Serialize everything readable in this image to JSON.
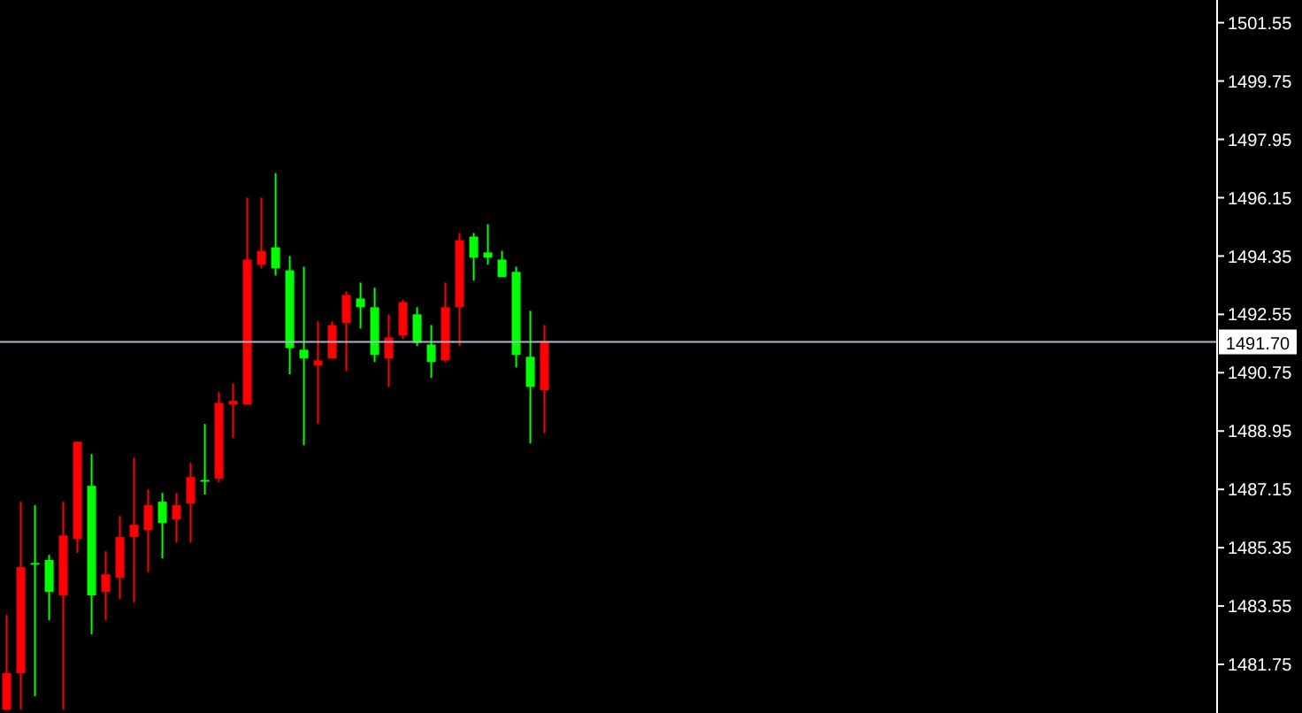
{
  "chart_data": {
    "type": "candlestick",
    "categories": [
      null,
      null,
      null,
      null,
      null,
      null,
      null,
      null,
      null,
      null,
      null,
      null,
      null,
      null,
      null,
      null,
      null,
      null,
      null,
      null,
      null,
      null,
      null,
      null,
      null,
      null,
      null,
      null,
      null,
      null,
      null,
      null,
      null,
      null,
      null,
      null,
      null,
      null,
      null,
      null,
      null,
      null,
      null,
      null,
      null,
      null,
      null,
      null,
      null,
      null,
      null,
      null,
      null,
      null,
      null,
      null,
      null,
      null,
      null,
      null,
      null,
      null,
      null,
      null,
      null,
      null,
      null,
      null,
      null,
      null,
      null,
      null,
      null,
      null,
      null,
      null,
      null,
      null,
      null,
      null,
      null,
      null,
      null,
      null,
      null,
      null
    ],
    "ohlc": [
      [
        1481.48,
        1483.28,
        1480.35,
        1480.35
      ],
      [
        1484.75,
        1486.77,
        1480.35,
        1481.48
      ],
      [
        1484.84,
        1486.66,
        1480.77,
        1484.88
      ],
      [
        1483.99,
        1485.13,
        1483.11,
        1484.97
      ],
      [
        1485.73,
        1486.77,
        1480.35,
        1483.88
      ],
      [
        1488.62,
        1488.62,
        1485.19,
        1485.62
      ],
      [
        1483.88,
        1488.24,
        1482.68,
        1487.26
      ],
      [
        1484.53,
        1485.24,
        1483.11,
        1483.99
      ],
      [
        1485.68,
        1486.33,
        1483.77,
        1484.42
      ],
      [
        1486.06,
        1488.13,
        1483.66,
        1485.68
      ],
      [
        1486.66,
        1487.15,
        1484.59,
        1485.89
      ],
      [
        1486.11,
        1487.04,
        1485.02,
        1486.77
      ],
      [
        1486.66,
        1487.04,
        1485.51,
        1486.22
      ],
      [
        1487.53,
        1487.97,
        1485.51,
        1486.71
      ],
      [
        1487.4,
        1489.17,
        1486.99,
        1487.44
      ],
      [
        1489.82,
        1490.15,
        1487.37,
        1487.48
      ],
      [
        1489.88,
        1490.42,
        1488.73,
        1489.77
      ],
      [
        1494.24,
        1496.15,
        1489.77,
        1489.77
      ],
      [
        1494.51,
        1496.15,
        1493.97,
        1494.08
      ],
      [
        1493.97,
        1496.91,
        1493.75,
        1494.62
      ],
      [
        1491.51,
        1494.35,
        1490.7,
        1493.91
      ],
      [
        1491.19,
        1494.02,
        1488.51,
        1491.46
      ],
      [
        1491.13,
        1492.33,
        1489.17,
        1490.97
      ],
      [
        1492.22,
        1492.33,
        1491.19,
        1491.19
      ],
      [
        1493.15,
        1493.26,
        1490.8,
        1492.28
      ],
      [
        1492.77,
        1493.53,
        1492.11,
        1493.04
      ],
      [
        1491.3,
        1493.37,
        1491.08,
        1492.77
      ],
      [
        1491.84,
        1492.55,
        1490.31,
        1491.19
      ],
      [
        1492.93,
        1492.99,
        1491.79,
        1491.9
      ],
      [
        1491.67,
        1492.77,
        1491.57,
        1492.55
      ],
      [
        1491.08,
        1492.22,
        1490.59,
        1491.62
      ],
      [
        1492.77,
        1493.53,
        1491.08,
        1491.13
      ],
      [
        1494.84,
        1495.06,
        1491.57,
        1492.77
      ],
      [
        1494.3,
        1495.06,
        1493.59,
        1494.95
      ],
      [
        1494.3,
        1495.33,
        1494.08,
        1494.46
      ],
      [
        1493.7,
        1494.51,
        1493.7,
        1494.24
      ],
      [
        1491.3,
        1494.02,
        1490.91,
        1493.86
      ],
      [
        1490.31,
        1492.66,
        1488.57,
        1491.24
      ],
      [
        1491.73,
        1492.22,
        1488.89,
        1490.21
      ],
      null,
      null,
      null,
      null,
      null,
      null,
      null,
      null,
      null,
      null,
      null,
      null,
      null,
      null,
      null,
      null,
      null,
      null,
      null,
      null,
      null,
      null,
      null,
      null,
      null,
      null,
      null,
      null,
      null,
      null,
      null,
      null,
      null,
      null,
      null,
      null,
      null,
      null,
      null,
      null,
      null,
      null,
      null,
      null,
      null,
      null,
      null
    ],
    "colors": [
      "#ff0000",
      "#ff0000",
      "#00ff00",
      "#00ff00",
      "#ff0000",
      "#ff0000",
      "#00ff00",
      "#ff0000",
      "#ff0000",
      "#ff0000",
      "#ff0000",
      "#00ff00",
      "#ff0000",
      "#ff0000",
      "#00ff00",
      "#ff0000",
      "#ff0000",
      "#ff0000",
      "#ff0000",
      "#00ff00",
      "#00ff00",
      "#00ff00",
      "#ff0000",
      "#ff0000",
      "#ff0000",
      "#00ff00",
      "#00ff00",
      "#ff0000",
      "#ff0000",
      "#00ff00",
      "#00ff00",
      "#ff0000",
      "#ff0000",
      "#00ff00",
      "#00ff00",
      "#00ff00",
      "#00ff00",
      "#00ff00",
      "#ff0000",
      null,
      null,
      null,
      null,
      null,
      null,
      null,
      null,
      null,
      null,
      null,
      null,
      null,
      null,
      null,
      null,
      null,
      null,
      null,
      null,
      null,
      null,
      null,
      null,
      null,
      null,
      null,
      null,
      null,
      null,
      null,
      null,
      null,
      null,
      null,
      null,
      null,
      null,
      null,
      null,
      null,
      null,
      null,
      null,
      null,
      null,
      null
    ],
    "ylim": [
      1480.25,
      1502.25
    ],
    "yticks": [
      1501.55,
      1499.75,
      1497.95,
      1496.15,
      1494.35,
      1492.55,
      1490.75,
      1488.95,
      1487.15,
      1485.35,
      1483.55,
      1481.75
    ],
    "ref_lines": [
      {
        "axis": "y",
        "value": 1491.7,
        "label": "1491.70",
        "color": "#a9b8c9"
      }
    ],
    "tick_labels": "y"
  }
}
